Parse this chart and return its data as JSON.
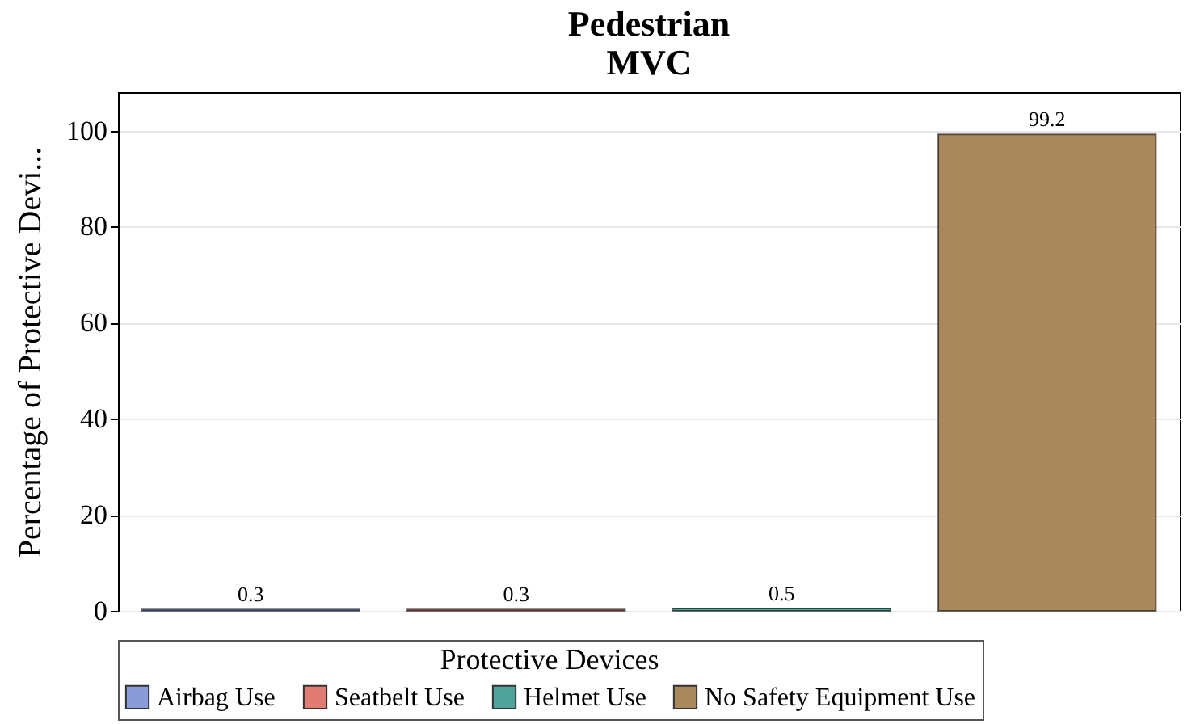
{
  "chart_data": {
    "type": "bar",
    "title": "Pedestrian",
    "subtitle": "MVC",
    "ylabel": "Percentage of Protective Devi...",
    "legend_title": "Protective Devices",
    "categories": [
      null,
      null,
      null,
      null
    ],
    "series": [
      {
        "name": "Airbag Use",
        "color": "#8a9bd9",
        "values": [
          0.3,
          null,
          null,
          null
        ]
      },
      {
        "name": "Seatbelt Use",
        "color": "#e07c72",
        "values": [
          null,
          0.3,
          null,
          null
        ]
      },
      {
        "name": "Helmet Use",
        "color": "#4fa39a",
        "values": [
          null,
          null,
          0.5,
          null
        ]
      },
      {
        "name": "No Safety Equipment Use",
        "color": "#a8885c",
        "values": [
          null,
          null,
          null,
          99.2
        ]
      }
    ],
    "ylim": [
      0,
      108
    ],
    "yticks": [
      0,
      20,
      40,
      60,
      80,
      100
    ],
    "grid": "y",
    "legend": "bottom",
    "data_labels": true
  }
}
